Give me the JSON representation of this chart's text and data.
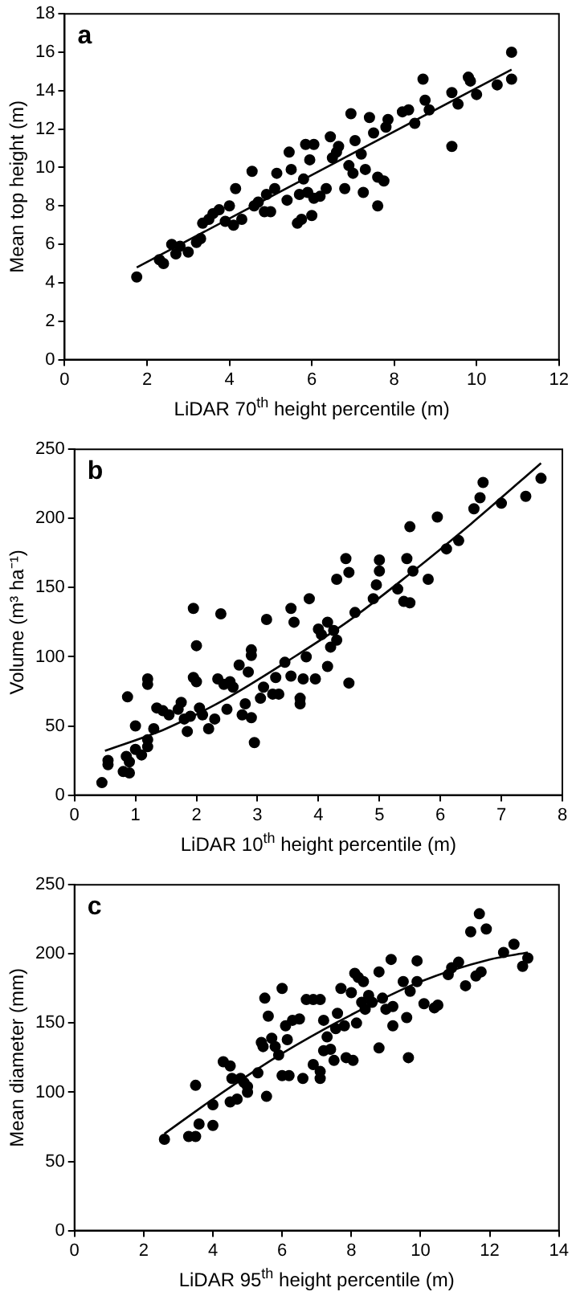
{
  "chart_data": [
    {
      "type": "scatter",
      "xlabel": "LiDAR 70$^{th}$ height percentile (m)",
      "ylabel": "Mean top height (m)",
      "annotations": [
        "a"
      ],
      "xlim": [
        0,
        12
      ],
      "xticks": [
        0,
        2,
        4,
        6,
        8,
        10,
        12
      ],
      "ylim": [
        0,
        18
      ],
      "yticks": [
        0,
        2,
        4,
        6,
        8,
        10,
        12,
        14,
        16,
        18
      ],
      "series": [
        {
          "type": "scatter",
          "marker": "circle",
          "color": "#000000",
          "x": [
            1.75,
            2.3,
            2.4,
            2.6,
            2.7,
            2.8,
            3.0,
            3.2,
            3.3,
            3.35,
            3.5,
            3.6,
            3.75,
            3.9,
            4.0,
            4.1,
            4.15,
            4.3,
            4.55,
            4.6,
            4.7,
            4.85,
            4.9,
            5.0,
            5.1,
            5.15,
            5.4,
            5.45,
            5.5,
            5.65,
            5.7,
            5.75,
            5.8,
            5.85,
            5.9,
            5.95,
            6.0,
            6.05,
            6.05,
            6.2,
            6.35,
            6.45,
            6.5,
            6.6,
            6.65,
            6.8,
            6.9,
            6.95,
            7.0,
            7.05,
            7.2,
            7.25,
            7.3,
            7.4,
            7.5,
            7.6,
            7.6,
            7.75,
            7.8,
            7.85,
            8.2,
            8.35,
            8.5,
            8.7,
            8.75,
            8.85,
            9.4,
            9.4,
            9.55,
            9.8,
            9.85,
            10.0,
            10.5,
            10.85,
            10.85
          ],
          "values": [
            4.3,
            5.2,
            5.0,
            6.0,
            5.5,
            5.9,
            5.6,
            6.1,
            6.3,
            7.1,
            7.3,
            7.6,
            7.8,
            7.2,
            8.0,
            7.0,
            8.9,
            7.3,
            9.8,
            8.0,
            8.2,
            7.7,
            8.6,
            7.7,
            8.9,
            9.7,
            8.3,
            10.8,
            9.9,
            7.1,
            8.6,
            7.3,
            9.4,
            11.2,
            8.7,
            10.4,
            7.5,
            11.2,
            8.4,
            8.5,
            8.9,
            11.6,
            10.5,
            10.8,
            11.1,
            8.9,
            10.1,
            12.8,
            9.7,
            11.4,
            10.7,
            8.7,
            9.9,
            12.6,
            11.8,
            9.5,
            8.0,
            9.3,
            12.1,
            12.5,
            12.9,
            13.0,
            12.3,
            14.6,
            13.5,
            13.0,
            13.9,
            11.1,
            13.3,
            14.7,
            14.5,
            13.8,
            14.3,
            16.0,
            14.6
          ]
        },
        {
          "type": "line",
          "color": "#000000",
          "x": [
            1.75,
            10.85
          ],
          "values": [
            4.8,
            15.1
          ]
        }
      ]
    },
    {
      "type": "scatter",
      "xlabel": "LiDAR 10$^{th}$ height percentile (m)",
      "ylabel": "Volume (m³ ha⁻¹)",
      "annotations": [
        "b"
      ],
      "xlim": [
        0,
        8
      ],
      "xticks": [
        0,
        1,
        2,
        3,
        4,
        5,
        6,
        7,
        8
      ],
      "ylim": [
        0,
        250
      ],
      "yticks": [
        0,
        50,
        100,
        150,
        200,
        250
      ],
      "series": [
        {
          "type": "scatter",
          "marker": "circle",
          "color": "#000000",
          "x": [
            0.45,
            0.55,
            0.55,
            0.8,
            0.85,
            0.9,
            0.9,
            0.87,
            1.0,
            1.0,
            1.1,
            1.2,
            1.2,
            1.2,
            1.2,
            1.3,
            1.35,
            1.45,
            1.55,
            1.7,
            1.75,
            1.8,
            1.85,
            1.9,
            1.95,
            1.95,
            2.0,
            2.0,
            2.05,
            2.1,
            2.2,
            2.3,
            2.35,
            2.4,
            2.45,
            2.5,
            2.55,
            2.6,
            2.7,
            2.75,
            2.8,
            2.85,
            2.9,
            2.9,
            2.9,
            2.95,
            3.05,
            3.1,
            3.15,
            3.25,
            3.3,
            3.35,
            3.45,
            3.55,
            3.55,
            3.6,
            3.7,
            3.7,
            3.75,
            3.8,
            3.85,
            3.95,
            4.0,
            4.05,
            4.15,
            4.15,
            4.2,
            4.25,
            4.3,
            4.3,
            4.45,
            4.5,
            4.5,
            4.6,
            4.9,
            4.95,
            5.0,
            5.0,
            5.3,
            5.4,
            5.45,
            5.5,
            5.5,
            5.55,
            5.8,
            5.95,
            6.1,
            6.3,
            6.55,
            6.65,
            6.7,
            7.0,
            7.4,
            7.65
          ],
          "values": [
            9,
            22,
            25,
            17,
            28,
            16,
            24,
            71,
            33,
            50,
            29,
            35,
            40,
            80,
            84,
            48,
            63,
            61,
            58,
            62,
            67,
            55,
            46,
            57,
            135,
            85,
            108,
            82,
            63,
            58,
            48,
            55,
            84,
            131,
            80,
            62,
            82,
            78,
            94,
            58,
            66,
            89,
            56,
            101,
            105,
            38,
            70,
            78,
            127,
            73,
            85,
            73,
            96,
            86,
            135,
            125,
            70,
            66,
            84,
            100,
            142,
            84,
            120,
            116,
            125,
            93,
            107,
            119,
            112,
            156,
            171,
            81,
            161,
            132,
            142,
            152,
            162,
            170,
            149,
            140,
            171,
            194,
            139,
            162,
            156,
            201,
            178,
            184,
            207,
            215,
            226,
            211,
            216,
            229
          ]
        },
        {
          "type": "line",
          "color": "#000000",
          "x": [
            0.5,
            1.5,
            2.5,
            3.5,
            4.5,
            5.5,
            6.5,
            7.65
          ],
          "values": [
            32,
            48,
            70,
            97,
            126,
            160,
            196,
            240
          ]
        }
      ]
    },
    {
      "type": "scatter",
      "xlabel": "LiDAR 95$^{th}$ height percentile (m)",
      "ylabel": "Mean diameter (mm)",
      "annotations": [
        "c"
      ],
      "xlim": [
        0,
        14
      ],
      "xticks": [
        0,
        2,
        4,
        6,
        8,
        10,
        12,
        14
      ],
      "ylim": [
        0,
        250
      ],
      "yticks": [
        0,
        50,
        100,
        150,
        200,
        250
      ],
      "series": [
        {
          "type": "scatter",
          "marker": "circle",
          "color": "#000000",
          "x": [
            2.6,
            3.3,
            3.5,
            3.5,
            3.6,
            4.0,
            4.0,
            4.3,
            4.5,
            4.5,
            4.55,
            4.7,
            4.8,
            4.9,
            5.0,
            5.0,
            5.3,
            5.4,
            5.45,
            5.5,
            5.55,
            5.6,
            5.7,
            5.8,
            5.9,
            6.0,
            6.0,
            6.1,
            6.15,
            6.2,
            6.3,
            6.5,
            6.6,
            6.7,
            6.9,
            6.9,
            7.1,
            7.1,
            7.1,
            7.2,
            7.2,
            7.3,
            7.4,
            7.5,
            7.55,
            7.6,
            7.7,
            7.8,
            7.85,
            8.0,
            8.05,
            8.1,
            8.15,
            8.2,
            8.3,
            8.35,
            8.4,
            8.5,
            8.6,
            8.8,
            8.8,
            8.9,
            9.0,
            9.15,
            9.2,
            9.2,
            9.5,
            9.6,
            9.65,
            9.7,
            9.9,
            9.9,
            10.1,
            10.4,
            10.5,
            10.8,
            10.9,
            11.1,
            11.3,
            11.45,
            11.6,
            11.7,
            11.75,
            11.9,
            12.4,
            12.7,
            12.95,
            13.1
          ],
          "values": [
            66,
            68,
            68,
            105,
            77,
            76,
            91,
            122,
            119,
            93,
            110,
            95,
            110,
            107,
            100,
            104,
            114,
            136,
            133,
            168,
            97,
            155,
            139,
            133,
            127,
            175,
            112,
            148,
            138,
            112,
            152,
            153,
            110,
            167,
            167,
            120,
            167,
            115,
            110,
            130,
            152,
            140,
            131,
            123,
            146,
            157,
            175,
            148,
            125,
            172,
            123,
            186,
            150,
            183,
            165,
            180,
            160,
            170,
            165,
            187,
            132,
            168,
            160,
            196,
            148,
            162,
            180,
            154,
            125,
            173,
            195,
            180,
            164,
            161,
            163,
            185,
            190,
            194,
            177,
            216,
            184,
            229,
            187,
            218,
            201,
            207,
            191,
            197
          ]
        },
        {
          "type": "line",
          "color": "#000000",
          "x": [
            2.6,
            4,
            6,
            8,
            10,
            12,
            13.1
          ],
          "values": [
            70,
            95,
            128,
            156,
            180,
            196,
            201
          ]
        }
      ]
    }
  ]
}
